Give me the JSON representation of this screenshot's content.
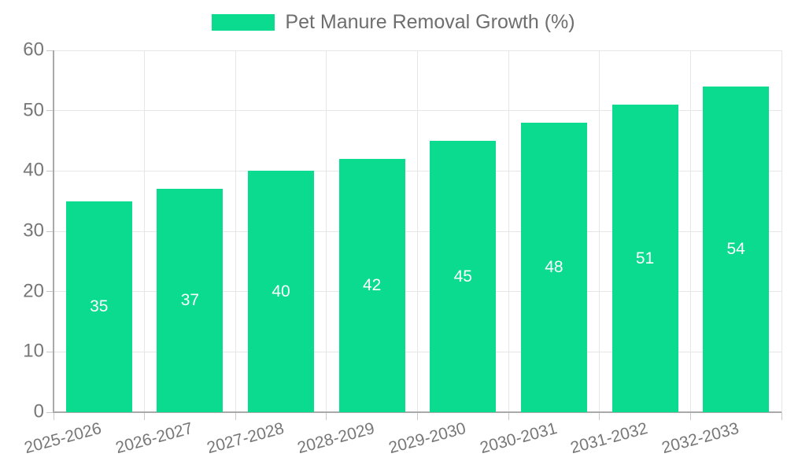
{
  "chart_data": {
    "type": "bar",
    "title": "Pet Manure Removal Growth (%)",
    "categories": [
      "2025-2026",
      "2026-2027",
      "2027-2028",
      "2028-2029",
      "2029-2030",
      "2030-2031",
      "2031-2032",
      "2032-2033"
    ],
    "values": [
      35,
      37,
      40,
      42,
      45,
      48,
      51,
      54
    ],
    "xlabel": "",
    "ylabel": "",
    "ylim": [
      0,
      60
    ],
    "yticks": [
      0,
      10,
      20,
      30,
      40,
      50,
      60
    ],
    "grid": true,
    "legend_position": "top",
    "bar_value_labels": true
  },
  "legend": {
    "label": "Pet Manure Removal Growth (%)"
  },
  "colors": {
    "bar": "#0ADB8F",
    "grid": "#E6E6E6",
    "axis": "#A9A9A9",
    "tick": "#C9C9C9",
    "text": "#777777",
    "legend_text": "#6E6E6E",
    "bar_label_text": "#FFFFFF",
    "background": "#FFFFFF"
  }
}
